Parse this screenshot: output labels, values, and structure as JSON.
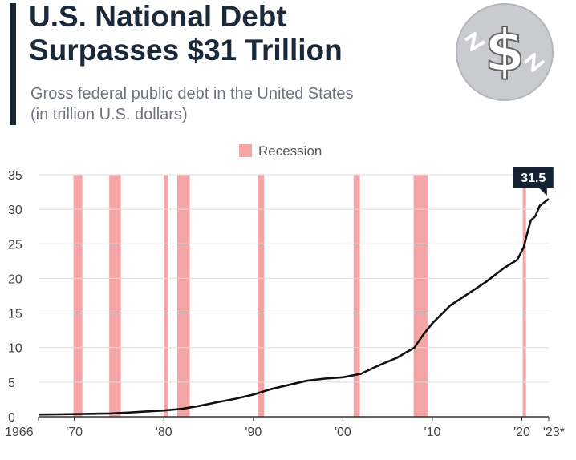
{
  "header": {
    "title_line1": "U.S. National Debt",
    "title_line2": "Surpasses $31 Trillion",
    "subtitle_line1": "Gross federal public debt in the United States",
    "subtitle_line2": "(in trillion U.S. dollars)",
    "logo_icon": "dollar-coin-icon"
  },
  "colors": {
    "title": "#1b2a3a",
    "subtitle": "#6d7480",
    "line": "#111111",
    "recession": "#f4a6a6",
    "callout_bg": "#142233",
    "logo_bg": "#c9cbce"
  },
  "chart_data": {
    "type": "line",
    "title": "U.S. National Debt Surpasses $31 Trillion",
    "subtitle": "Gross federal public debt in the United States (in trillion U.S. dollars)",
    "xlabel": "",
    "ylabel": "",
    "ylim": [
      0,
      35
    ],
    "xlim": [
      1966,
      2023
    ],
    "yticks": [
      0,
      5,
      10,
      15,
      20,
      25,
      30,
      35
    ],
    "xtick_labels": [
      {
        "x": 1966,
        "label": "1966"
      },
      {
        "x": 1970,
        "label": "'70"
      },
      {
        "x": 1980,
        "label": "'80"
      },
      {
        "x": 1990,
        "label": "'90"
      },
      {
        "x": 2000,
        "label": "'00"
      },
      {
        "x": 2010,
        "label": "'10"
      },
      {
        "x": 2020,
        "label": "'20"
      },
      {
        "x": 2023,
        "label": "'23*"
      }
    ],
    "grid": "horizontal",
    "legend": {
      "placement": "top-center",
      "entries": [
        "Recession"
      ]
    },
    "callout": {
      "x": 2022.8,
      "y": 31.5,
      "label": "31.5"
    },
    "recessions": [
      [
        1969.9,
        1970.9
      ],
      [
        1973.9,
        1975.2
      ],
      [
        1980.0,
        1980.5
      ],
      [
        1981.5,
        1982.9
      ],
      [
        1990.5,
        1991.2
      ],
      [
        2001.2,
        2001.9
      ],
      [
        2007.9,
        2009.5
      ],
      [
        2020.1,
        2020.4
      ]
    ],
    "series": [
      {
        "x": [
          1966,
          1968,
          1970,
          1972,
          1974,
          1976,
          1978,
          1980,
          1982,
          1984,
          1986,
          1988,
          1990,
          1992,
          1994,
          1996,
          1998,
          2000,
          2002,
          2004,
          2006,
          2008,
          2009,
          2010,
          2012,
          2014,
          2016,
          2018,
          2019.5,
          2020.2,
          2020.6,
          2021,
          2021.5,
          2022,
          2022.5,
          2023
        ],
        "y": [
          0.32,
          0.35,
          0.38,
          0.43,
          0.48,
          0.6,
          0.77,
          0.9,
          1.14,
          1.57,
          2.1,
          2.6,
          3.2,
          4.0,
          4.6,
          5.2,
          5.5,
          5.7,
          6.2,
          7.4,
          8.5,
          10.0,
          11.9,
          13.5,
          16.1,
          17.8,
          19.5,
          21.5,
          22.7,
          24.5,
          26.5,
          28.4,
          29.0,
          30.5,
          31.0,
          31.5
        ]
      }
    ]
  }
}
